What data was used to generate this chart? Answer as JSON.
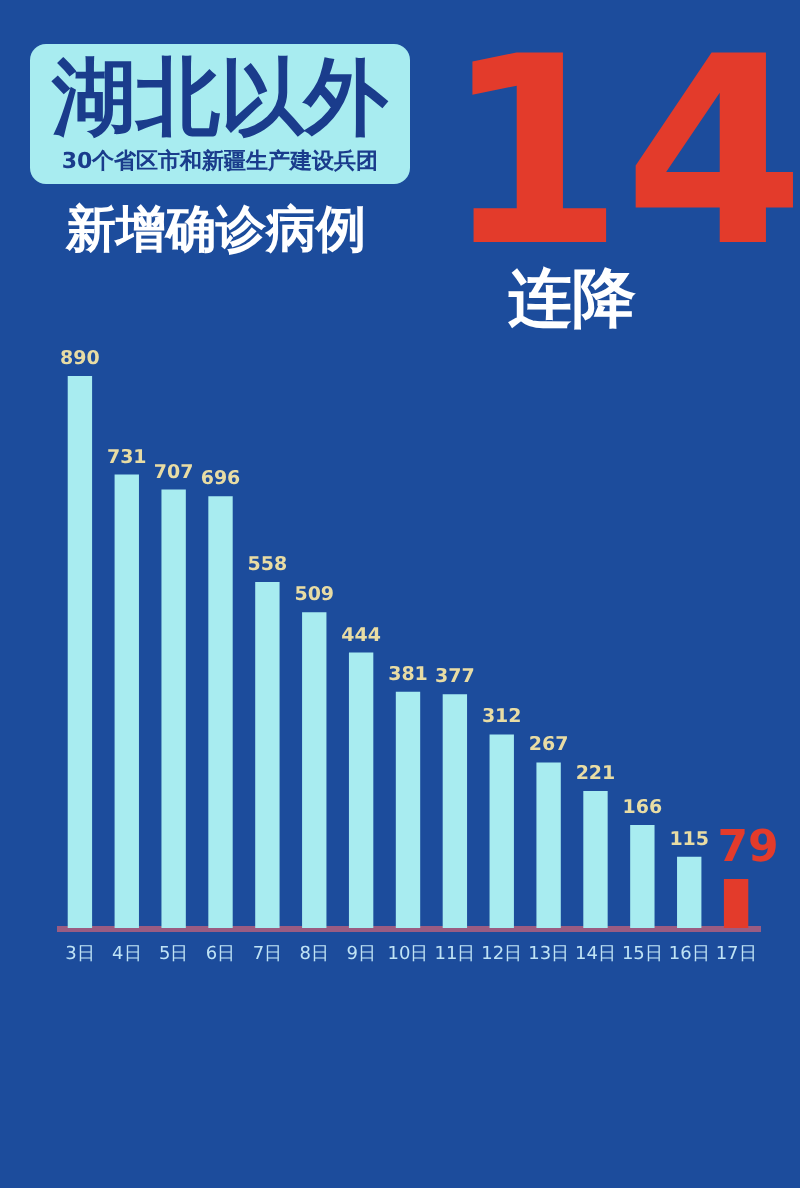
{
  "chart_data": {
    "type": "bar",
    "title": "湖北以外",
    "subtitle": "30个省区市和新疆生产建设兵团",
    "annotations": [
      "新增确诊病例",
      "14",
      "连降"
    ],
    "categories": [
      "3日",
      "4日",
      "5日",
      "6日",
      "7日",
      "8日",
      "9日",
      "10日",
      "11日",
      "12日",
      "13日",
      "14日",
      "15日",
      "16日",
      "17日"
    ],
    "values": [
      890,
      731,
      707,
      696,
      558,
      509,
      444,
      381,
      377,
      312,
      267,
      221,
      166,
      115,
      79
    ],
    "colors": [
      "#a8ecf0",
      "#a8ecf0",
      "#a8ecf0",
      "#a8ecf0",
      "#a8ecf0",
      "#a8ecf0",
      "#a8ecf0",
      "#a8ecf0",
      "#a8ecf0",
      "#a8ecf0",
      "#a8ecf0",
      "#a8ecf0",
      "#a8ecf0",
      "#a8ecf0",
      "#e33b2b"
    ],
    "data_labels": true,
    "grid": false,
    "tick_labels": "x"
  }
}
